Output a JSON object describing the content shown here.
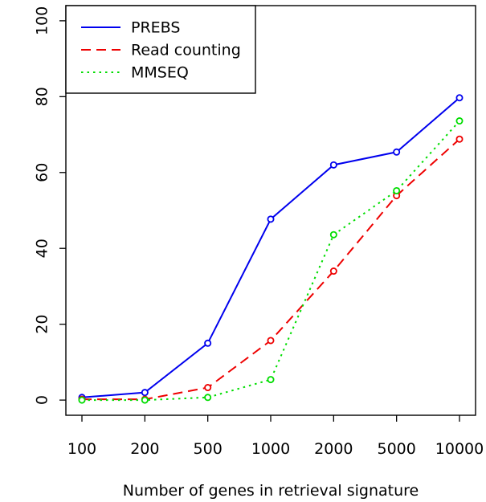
{
  "chart_data": {
    "type": "line",
    "title": "",
    "xlabel": "Number of genes in retrieval signature",
    "ylabel": "",
    "categories": [
      "100",
      "200",
      "500",
      "1000",
      "2000",
      "5000",
      "10000"
    ],
    "y_ticks": [
      "0",
      "20",
      "40",
      "60",
      "80",
      "100"
    ],
    "ylim": [
      -4,
      104
    ],
    "grid": false,
    "legend_position": "top-left",
    "series": [
      {
        "name": "PREBS",
        "color": "#0000ee",
        "dash": "solid",
        "values": [
          0.7,
          2.0,
          15.0,
          47.7,
          62.0,
          65.4,
          79.7
        ]
      },
      {
        "name": "Read counting",
        "color": "#ee0000",
        "dash": "dashed",
        "values": [
          0.2,
          0.2,
          3.3,
          15.7,
          34.0,
          53.9,
          68.8
        ]
      },
      {
        "name": "MMSEQ",
        "color": "#00dd00",
        "dash": "dotted",
        "values": [
          0.0,
          0.0,
          0.7,
          5.4,
          43.6,
          55.2,
          73.6
        ]
      }
    ]
  }
}
